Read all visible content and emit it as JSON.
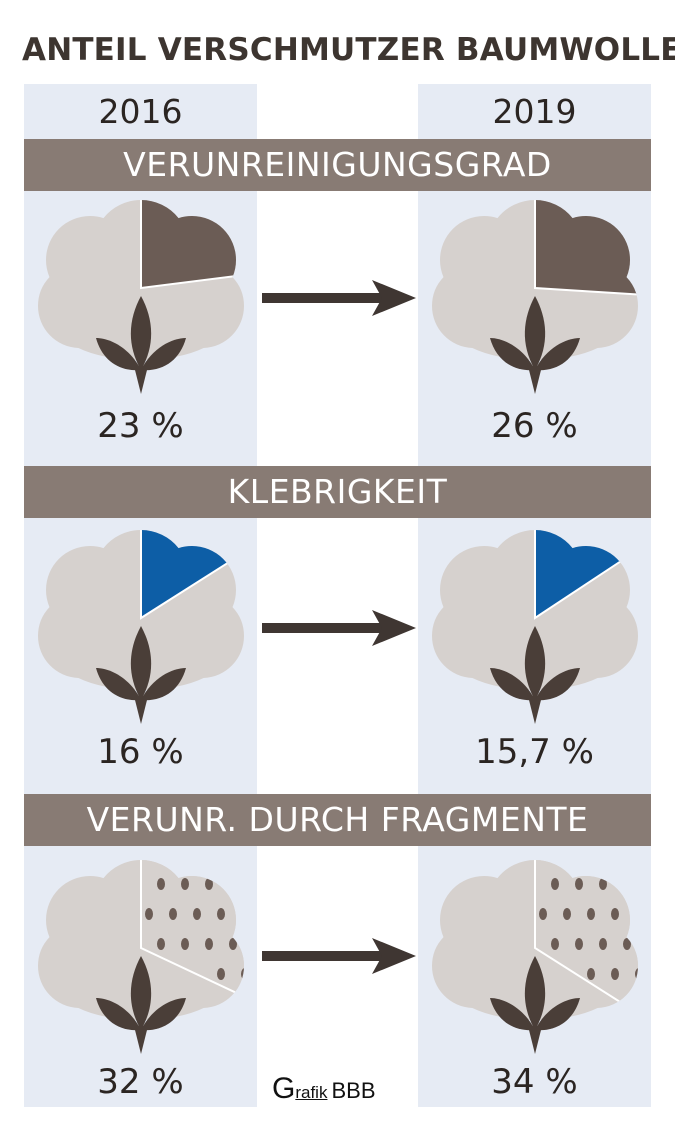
{
  "title": "ANTEIL VERSCHMUTZER BAUMWOLLE",
  "years": [
    "2016",
    "2019"
  ],
  "colors": {
    "column_bg": "#e6ebf4",
    "banner": "#887b74",
    "cotton": "#d6d1ce",
    "dark_slice": "#6b5c55",
    "blue_slice": "#0d5ea6",
    "dots": "#6b5c55",
    "leaves": "#4a3e38",
    "arrow": "#3f3632"
  },
  "chart_data": [
    {
      "type": "pie",
      "title": "VERUNREINIGUNGSGRAD",
      "categories": [
        "2016",
        "2019"
      ],
      "values": [
        23,
        26
      ],
      "value_labels": [
        "23 %",
        "26 %"
      ],
      "fill": "solid-dark"
    },
    {
      "type": "pie",
      "title": "KLEBRIGKEIT",
      "categories": [
        "2016",
        "2019"
      ],
      "values": [
        16,
        15.7
      ],
      "value_labels": [
        "16 %",
        "15,7 %"
      ],
      "fill": "solid-blue"
    },
    {
      "type": "pie",
      "title": "VERUNR. DURCH FRAGMENTE",
      "categories": [
        "2016",
        "2019"
      ],
      "values": [
        32,
        34
      ],
      "value_labels": [
        "32 %",
        "34 %"
      ],
      "fill": "dotted"
    }
  ],
  "credit": {
    "g": "G",
    "rafik": "rafik",
    "bbb": "BBB"
  }
}
